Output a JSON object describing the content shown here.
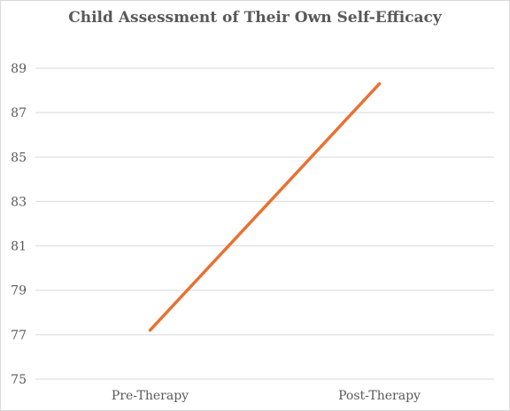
{
  "chart_data": {
    "type": "line",
    "title": "Child Assessment of Their Own Self-Efficacy",
    "xlabel": "",
    "ylabel": "",
    "categories": [
      "Pre-Therapy",
      "Post-Therapy"
    ],
    "series": [
      {
        "values": [
          77.2,
          88.3
        ],
        "color": "#E97132"
      }
    ],
    "ylim": [
      75,
      89
    ],
    "yticks": [
      75,
      77,
      79,
      81,
      83,
      85,
      87,
      89
    ],
    "grid": true,
    "legend": "none"
  }
}
